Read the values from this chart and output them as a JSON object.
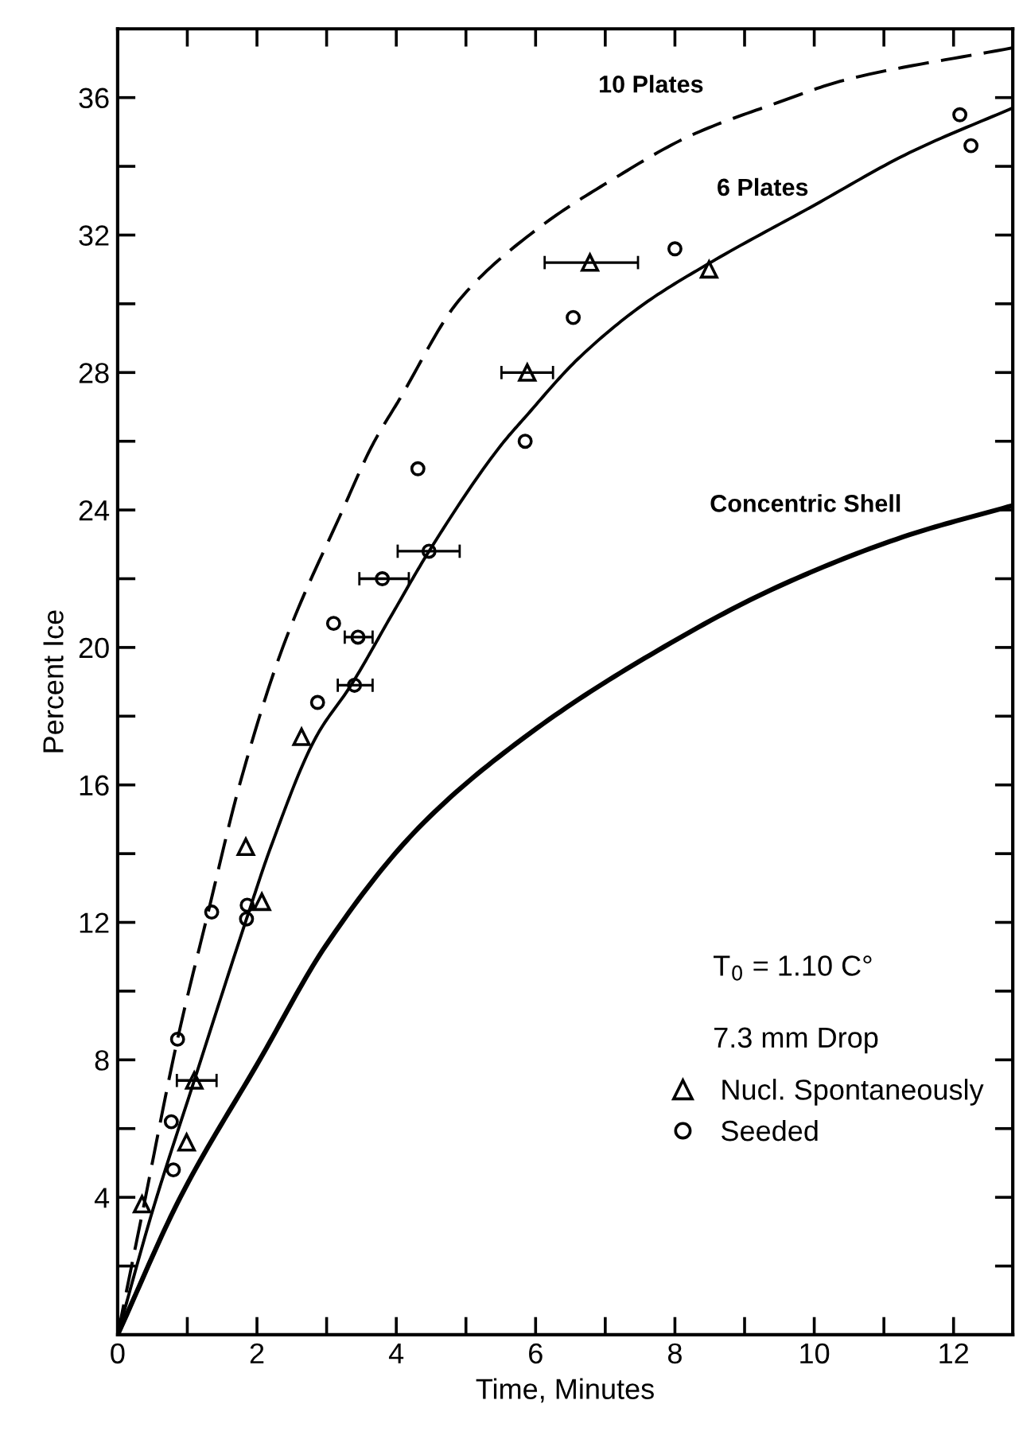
{
  "chart_data": {
    "type": "line",
    "xlabel": "Time, Minutes",
    "ylabel": "Percent Ice",
    "xlim": [
      0,
      12.85
    ],
    "ylim": [
      0,
      38
    ],
    "xticks": [
      0,
      {
        "value": 1,
        "label": null
      },
      2,
      {
        "value": 3,
        "label": null
      },
      4,
      {
        "value": 5,
        "label": null
      },
      6,
      {
        "value": 7,
        "label": null
      },
      8,
      {
        "value": 9,
        "label": null
      },
      10,
      {
        "value": 11,
        "label": null
      },
      12
    ],
    "yticks": [
      {
        "value": 2,
        "label": null
      },
      4,
      {
        "value": 6,
        "label": null
      },
      8,
      {
        "value": 10,
        "label": null
      },
      12,
      {
        "value": 14,
        "label": null
      },
      16,
      {
        "value": 18,
        "label": null
      },
      20,
      {
        "value": 22,
        "label": null
      },
      24,
      {
        "value": 26,
        "label": null
      },
      28,
      {
        "value": 30,
        "label": null
      },
      32,
      {
        "value": 34,
        "label": null
      },
      36
    ],
    "grid": false,
    "legend": "right",
    "annotations": [
      "T$_{0}$ = 1.10 C°",
      "7.3 mm Drop"
    ],
    "series": [
      {
        "name": "10 Plates",
        "line_style": "dashed",
        "color": "#000000",
        "x": [
          0,
          0.35,
          0.86,
          1.3,
          1.75,
          2.37,
          3.23,
          3.66,
          4.04,
          4.9,
          6.04,
          7.09,
          8.23,
          9.47,
          10.42,
          12.85
        ],
        "values": [
          0,
          3.5,
          8.6,
          12.3,
          16,
          20,
          24,
          25.9,
          27.2,
          30.1,
          32.2,
          33.6,
          34.9,
          35.85,
          36.5,
          37.45
        ]
      },
      {
        "name": "6 Plates",
        "line_style": "solid",
        "color": "#000000",
        "x": [
          0,
          0.5,
          1.1,
          1.85,
          2.2,
          2.85,
          3.35,
          3.95,
          4.47,
          5.51,
          5.85,
          6.61,
          7.56,
          8.51,
          9.94,
          11.37,
          12.85
        ],
        "values": [
          0,
          3.6,
          7.4,
          12.1,
          14.2,
          17.4,
          18.9,
          21.0,
          22.8,
          25.9,
          26.7,
          28.4,
          30.0,
          31.2,
          32.8,
          34.4,
          35.7
        ]
      },
      {
        "name": "Concentric Shell",
        "line_style": "solid",
        "color": "#000000",
        "x": [
          0,
          0.9,
          2.04,
          2.99,
          4.32,
          5.85,
          7.56,
          9.47,
          11.37,
          12.85
        ],
        "values": [
          0,
          4,
          8,
          11.33,
          14.75,
          17.4,
          19.68,
          21.76,
          23.28,
          24.13
        ]
      },
      {
        "name": "Nucl. Spontaneously",
        "type": "scatter",
        "marker": "triangle",
        "color": "#000000",
        "x": [
          6.78,
          8.49,
          5.88,
          2.64,
          1.84,
          2.07,
          1.1,
          0.99,
          0.35
        ],
        "values": [
          31.2,
          31.0,
          28.0,
          17.4,
          14.2,
          12.6,
          7.4,
          5.6,
          3.8
        ],
        "xerrors": [
          [
            6.13,
            7.47
          ],
          null,
          [
            5.51,
            6.25
          ],
          null,
          null,
          null,
          [
            0.85,
            1.42
          ],
          null,
          null
        ]
      },
      {
        "name": "Seeded",
        "type": "scatter",
        "marker": "circle",
        "color": "#000000",
        "x": [
          12.09,
          12.25,
          8.0,
          6.54,
          5.85,
          4.31,
          4.47,
          3.8,
          3.1,
          3.45,
          3.4,
          2.87,
          1.35,
          1.86,
          1.85,
          0.86,
          0.77,
          0.8
        ],
        "values": [
          35.5,
          34.6,
          31.6,
          29.6,
          26.0,
          25.2,
          22.8,
          22.0,
          20.7,
          20.3,
          18.9,
          18.4,
          12.3,
          12.5,
          12.1,
          8.6,
          6.2,
          4.8
        ],
        "xerrors": [
          null,
          null,
          null,
          null,
          null,
          null,
          [
            4.02,
            4.91
          ],
          [
            3.47,
            4.18
          ],
          null,
          [
            3.26,
            3.66
          ],
          [
            3.16,
            3.66
          ],
          null,
          null,
          null,
          null,
          null,
          null,
          null
        ]
      }
    ]
  }
}
